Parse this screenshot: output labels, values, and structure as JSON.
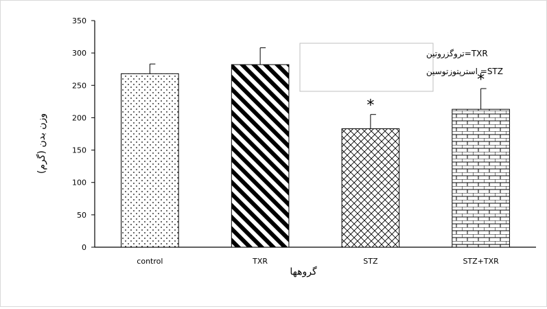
{
  "chart_data": {
    "type": "bar",
    "title": "",
    "xlabel": "گروهها",
    "ylabel": "وزن بدن (گرم)",
    "ylim": [
      0,
      350
    ],
    "yticks": [
      0,
      50,
      100,
      150,
      200,
      250,
      300,
      350
    ],
    "grid": false,
    "categories": [
      "control",
      "TXR",
      "STZ",
      "STZ+TXR"
    ],
    "values": [
      268,
      282,
      183,
      213
    ],
    "error": [
      15,
      26,
      22,
      32
    ],
    "significance": [
      "",
      "",
      "*",
      "*"
    ],
    "patterns": [
      "dots",
      "diagonal-stripes",
      "crosshatch",
      "bricks"
    ],
    "colors": {
      "bar_fill": "#ffffff",
      "pattern": "#000000",
      "axis": "#000000"
    },
    "legend_position": "top-center",
    "legend": [
      {
        "abbr": "TXR",
        "text": "TXR=تروگزروتین"
      },
      {
        "abbr": "STZ",
        "text": "STZ= استرپتوزتوسین"
      }
    ]
  }
}
